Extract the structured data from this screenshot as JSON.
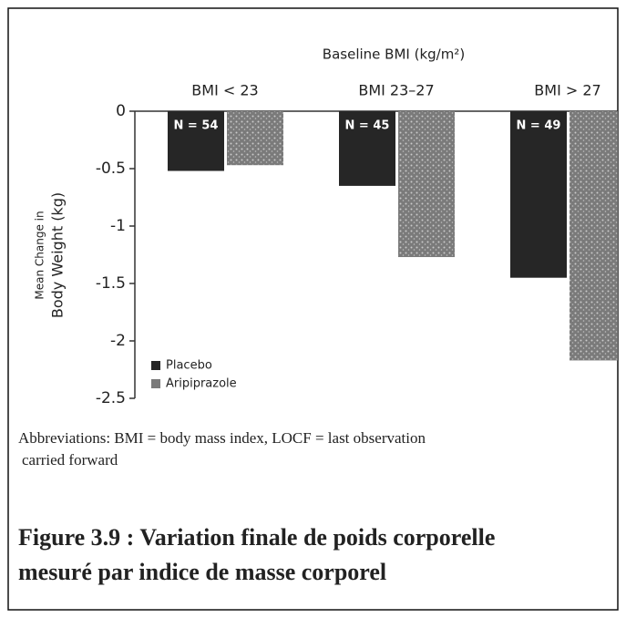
{
  "chart_data": {
    "type": "bar",
    "title": "Baseline BMI (kg/m²)",
    "ylabel": [
      "Mean Change in",
      "Body Weight (kg)"
    ],
    "categories": [
      "BMI < 23",
      "BMI 23–27",
      "BMI > 27"
    ],
    "series": [
      {
        "name": "Placebo",
        "color": "#262626",
        "values": [
          -0.52,
          -0.65,
          -1.45
        ],
        "bar_labels": [
          "N = 54",
          "N = 45",
          "N = 49"
        ]
      },
      {
        "name": "Aripiprazole",
        "color": "#7a7a7a",
        "values": [
          -0.47,
          -1.27,
          -2.17
        ]
      }
    ],
    "ylim": [
      -2.5,
      0
    ],
    "yticks": [
      0,
      -0.5,
      -1,
      -1.5,
      -2,
      -2.5
    ],
    "legend": "lower left",
    "notes": [
      "Abbreviations: BMI = body mass index, LOCF = last observation",
      "carried forward"
    ],
    "caption": [
      "Figure 3.9 : Variation finale de poids corporelle",
      "mesuré par indice de masse corporel"
    ]
  }
}
